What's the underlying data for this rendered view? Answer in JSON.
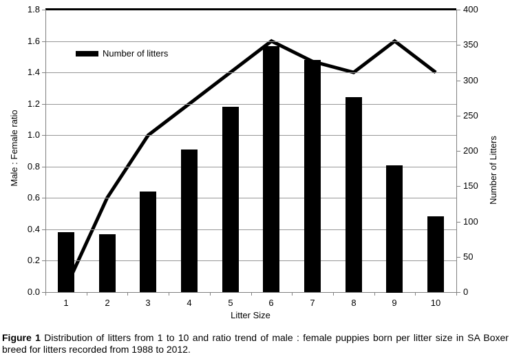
{
  "chart_data": {
    "type": "bar",
    "subtype": "bar-line-combo",
    "categories": [
      1,
      2,
      3,
      4,
      5,
      6,
      7,
      8,
      9,
      10
    ],
    "series": [
      {
        "name": "Number of litters",
        "type": "bar",
        "axis": "right",
        "values": [
          85,
          82,
          142,
          202,
          262,
          348,
          329,
          276,
          180,
          107
        ]
      },
      {
        "name": "Male : Female ratio trend",
        "type": "line",
        "axis": "left",
        "values": [
          0.03,
          0.6,
          1.0,
          1.2,
          1.4,
          1.6,
          1.47,
          1.4,
          1.6,
          1.4
        ]
      }
    ],
    "xlabel": "Litter Size",
    "left_axis": {
      "label": "Male : Female ratio",
      "min": 0,
      "max": 1.8,
      "step": 0.2,
      "ticks": [
        "0.0",
        "0.2",
        "0.4",
        "0.6",
        "0.8",
        "1.0",
        "1.2",
        "1.4",
        "1.6",
        "1.8"
      ]
    },
    "right_axis": {
      "label": "Number of Litters",
      "min": 0,
      "max": 400,
      "step": 50,
      "ticks": [
        "0",
        "50",
        "100",
        "150",
        "200",
        "250",
        "300",
        "350",
        "400"
      ]
    },
    "legend": {
      "label": "Number of litters",
      "position": "top-left-inside-plot"
    },
    "grid": {
      "horizontal": true,
      "interval_on_left_axis": 0.2
    },
    "colors": {
      "bar": "#000000",
      "line": "#000000",
      "gridline": "#969696",
      "axis": "#808080",
      "text": "#000000",
      "background": "#ffffff"
    }
  },
  "caption": {
    "label": "Figure 1",
    "text": " Distribution of litters from 1 to 10 and ratio trend of male : female puppies born per litter size in SA Boxer breed for litters recorded from 1988 to 2012."
  }
}
